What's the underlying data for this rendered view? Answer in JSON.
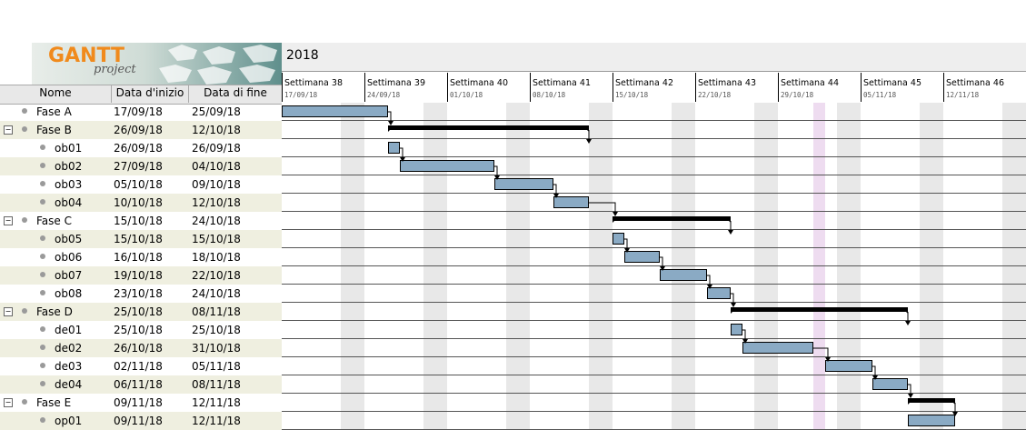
{
  "logo": {
    "name": "GANTT",
    "sub": "project"
  },
  "year": "2018",
  "weeks": [
    {
      "label": "Settimana  38",
      "date": "17/09/18"
    },
    {
      "label": "Settimana  39",
      "date": "24/09/18"
    },
    {
      "label": "Settimana  40",
      "date": "01/10/18"
    },
    {
      "label": "Settimana  41",
      "date": "08/10/18"
    },
    {
      "label": "Settimana  42",
      "date": "15/10/18"
    },
    {
      "label": "Settimana  43",
      "date": "22/10/18"
    },
    {
      "label": "Settimana  44",
      "date": "29/10/18"
    },
    {
      "label": "Settimana  45",
      "date": "05/11/18"
    },
    {
      "label": "Settimana  46",
      "date": "12/11/18"
    }
  ],
  "columns": {
    "name": "Nome",
    "start": "Data d'inizio",
    "end": "Data di fine"
  },
  "tasks": [
    {
      "name": "Fase A",
      "start": "17/09/18",
      "end": "25/09/18",
      "level": 0,
      "group": false
    },
    {
      "name": "Fase B",
      "start": "26/09/18",
      "end": "12/10/18",
      "level": 0,
      "group": true
    },
    {
      "name": "ob01",
      "start": "26/09/18",
      "end": "26/09/18",
      "level": 1,
      "group": false
    },
    {
      "name": "ob02",
      "start": "27/09/18",
      "end": "04/10/18",
      "level": 1,
      "group": false
    },
    {
      "name": "ob03",
      "start": "05/10/18",
      "end": "09/10/18",
      "level": 1,
      "group": false
    },
    {
      "name": "ob04",
      "start": "10/10/18",
      "end": "12/10/18",
      "level": 1,
      "group": false
    },
    {
      "name": "Fase C",
      "start": "15/10/18",
      "end": "24/10/18",
      "level": 0,
      "group": true
    },
    {
      "name": "ob05",
      "start": "15/10/18",
      "end": "15/10/18",
      "level": 1,
      "group": false
    },
    {
      "name": "ob06",
      "start": "16/10/18",
      "end": "18/10/18",
      "level": 1,
      "group": false
    },
    {
      "name": "ob07",
      "start": "19/10/18",
      "end": "22/10/18",
      "level": 1,
      "group": false
    },
    {
      "name": "ob08",
      "start": "23/10/18",
      "end": "24/10/18",
      "level": 1,
      "group": false
    },
    {
      "name": "Fase D",
      "start": "25/10/18",
      "end": "08/11/18",
      "level": 0,
      "group": true
    },
    {
      "name": "de01",
      "start": "25/10/18",
      "end": "25/10/18",
      "level": 1,
      "group": false
    },
    {
      "name": "de02",
      "start": "26/10/18",
      "end": "31/10/18",
      "level": 1,
      "group": false
    },
    {
      "name": "de03",
      "start": "02/11/18",
      "end": "05/11/18",
      "level": 1,
      "group": false
    },
    {
      "name": "de04",
      "start": "06/11/18",
      "end": "08/11/18",
      "level": 1,
      "group": false
    },
    {
      "name": "Fase E",
      "start": "09/11/18",
      "end": "12/11/18",
      "level": 0,
      "group": true
    },
    {
      "name": "op01",
      "start": "09/11/18",
      "end": "12/11/18",
      "level": 1,
      "group": false
    }
  ],
  "today": "01/11/18",
  "colors": {
    "task_bar": "#8aaac4",
    "summary_bar": "#000000",
    "weekend": "#e8e8e8",
    "today": "#eedcf0",
    "row_alt": "#efefe0",
    "logo_orange": "#f08a1c"
  }
}
